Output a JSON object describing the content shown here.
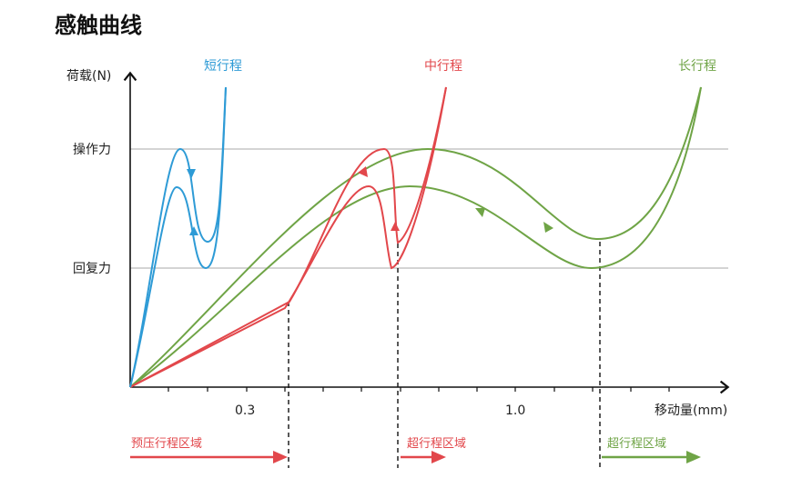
{
  "title": "感触曲线",
  "colors": {
    "short": "#2E9BD6",
    "medium": "#E2474B",
    "long": "#6FA446",
    "axis": "#111111",
    "grid": "#BBBBBB"
  },
  "axes": {
    "ylabel": "荷载(N)",
    "xlabel": "移动量(mm)",
    "y_levels": [
      "操作力",
      "回复力"
    ],
    "x_ticks": [
      "0.3",
      "1.0"
    ]
  },
  "series": {
    "short": "短行程",
    "medium": "中行程",
    "long": "长行程"
  },
  "zones": {
    "pretravel": "预压行程区域",
    "overtravel_medium": "超行程区域",
    "overtravel_long": "超行程区域"
  }
}
